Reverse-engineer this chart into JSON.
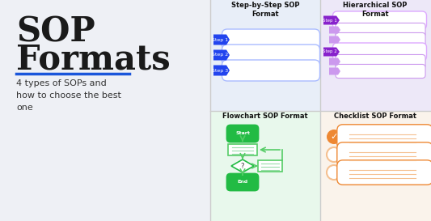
{
  "bg_left": "#eef0f5",
  "bg_white": "#ffffff",
  "title": "SOP\nFormats",
  "subtitle": "4 types of SOPs and\nhow to choose the best\none",
  "title_color": "#1a1a1a",
  "underline_color": "#1a56db",
  "panel_titles": [
    "Step-by-Step SOP\nFormat",
    "Hierarchical SOP\nFormat",
    "Flowchart SOP Format",
    "Checklist SOP Format"
  ],
  "panel_bg": [
    "#e8eef8",
    "#ede8f8",
    "#e8f8ec",
    "#faf3eb"
  ],
  "step_color_blue": "#2244ee",
  "step_bar_blue": "#aabbff",
  "step_color_purple": "#8822cc",
  "step_color_purple_light": "#cc99ee",
  "step_bar_purple": "#ddaaff",
  "green_dark": "#22bb44",
  "green_med": "#55cc66",
  "green_light": "#99ddaa",
  "orange": "#ee8833",
  "orange_light": "#f5c090",
  "grid_color": "#cccccc"
}
